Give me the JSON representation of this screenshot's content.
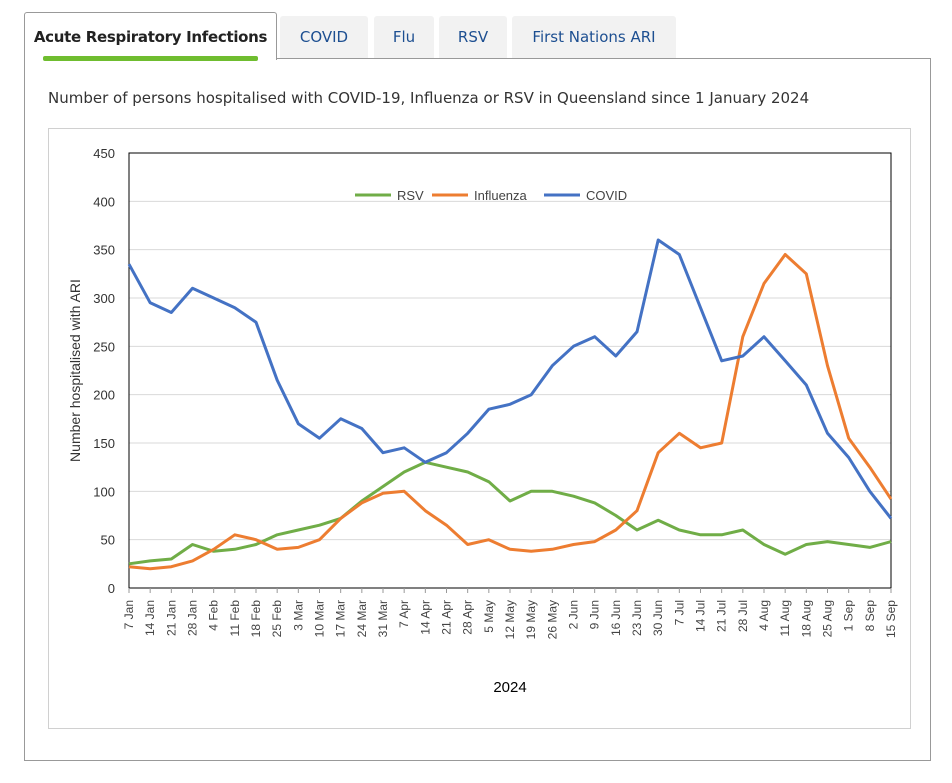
{
  "tabs": [
    {
      "label": "Acute Respiratory Infections",
      "active": true
    },
    {
      "label": "COVID"
    },
    {
      "label": "Flu"
    },
    {
      "label": "RSV"
    },
    {
      "label": "First Nations ARI"
    }
  ],
  "subtitle": "Number of persons hospitalised with COVID-19, Influenza or RSV in Queensland since 1 January 2024",
  "chart_data": {
    "type": "line",
    "title": "Number of persons hospitalised with COVID-19, Influenza or RSV in Queensland since 1 January 2024",
    "xlabel": "2024",
    "ylabel": "Number hospitalised with ARI",
    "ylim": [
      0,
      450
    ],
    "yticks": [
      0,
      50,
      100,
      150,
      200,
      250,
      300,
      350,
      400,
      450
    ],
    "grid": true,
    "legend": "top-center",
    "categories": [
      "7 Jan",
      "14 Jan",
      "21 Jan",
      "28 Jan",
      "4 Feb",
      "11 Feb",
      "18 Feb",
      "25 Feb",
      "3 Mar",
      "10 Mar",
      "17 Mar",
      "24 Mar",
      "31 Mar",
      "7 Apr",
      "14 Apr",
      "21 Apr",
      "28 Apr",
      "5 May",
      "12 May",
      "19 May",
      "26 May",
      "2 Jun",
      "9 Jun",
      "16 Jun",
      "23 Jun",
      "30 Jun",
      "7 Jul",
      "14 Jul",
      "21 Jul",
      "28 Jul",
      "4 Aug",
      "11 Aug",
      "18 Aug",
      "25 Aug",
      "1 Sep",
      "8 Sep",
      "15 Sep"
    ],
    "series": [
      {
        "name": "RSV",
        "color": "#70ad47",
        "values": [
          25,
          28,
          30,
          45,
          38,
          40,
          45,
          55,
          60,
          65,
          72,
          90,
          105,
          120,
          130,
          125,
          120,
          110,
          90,
          100,
          100,
          95,
          88,
          75,
          60,
          70,
          60,
          55,
          55,
          60,
          45,
          35,
          45,
          48,
          45,
          42,
          48
        ]
      },
      {
        "name": "Influenza",
        "color": "#ed7d31",
        "values": [
          22,
          20,
          22,
          28,
          40,
          55,
          50,
          40,
          42,
          50,
          72,
          88,
          98,
          100,
          80,
          65,
          45,
          50,
          40,
          38,
          40,
          45,
          48,
          60,
          80,
          140,
          160,
          145,
          150,
          260,
          315,
          345,
          325,
          230,
          155,
          125,
          92
        ]
      },
      {
        "name": "COVID",
        "color": "#4472c4",
        "values": [
          335,
          295,
          285,
          310,
          300,
          290,
          275,
          215,
          170,
          155,
          175,
          165,
          140,
          145,
          130,
          140,
          160,
          185,
          190,
          200,
          230,
          250,
          260,
          240,
          265,
          360,
          345,
          290,
          235,
          240,
          260,
          235,
          210,
          160,
          135,
          100,
          72
        ]
      }
    ]
  }
}
